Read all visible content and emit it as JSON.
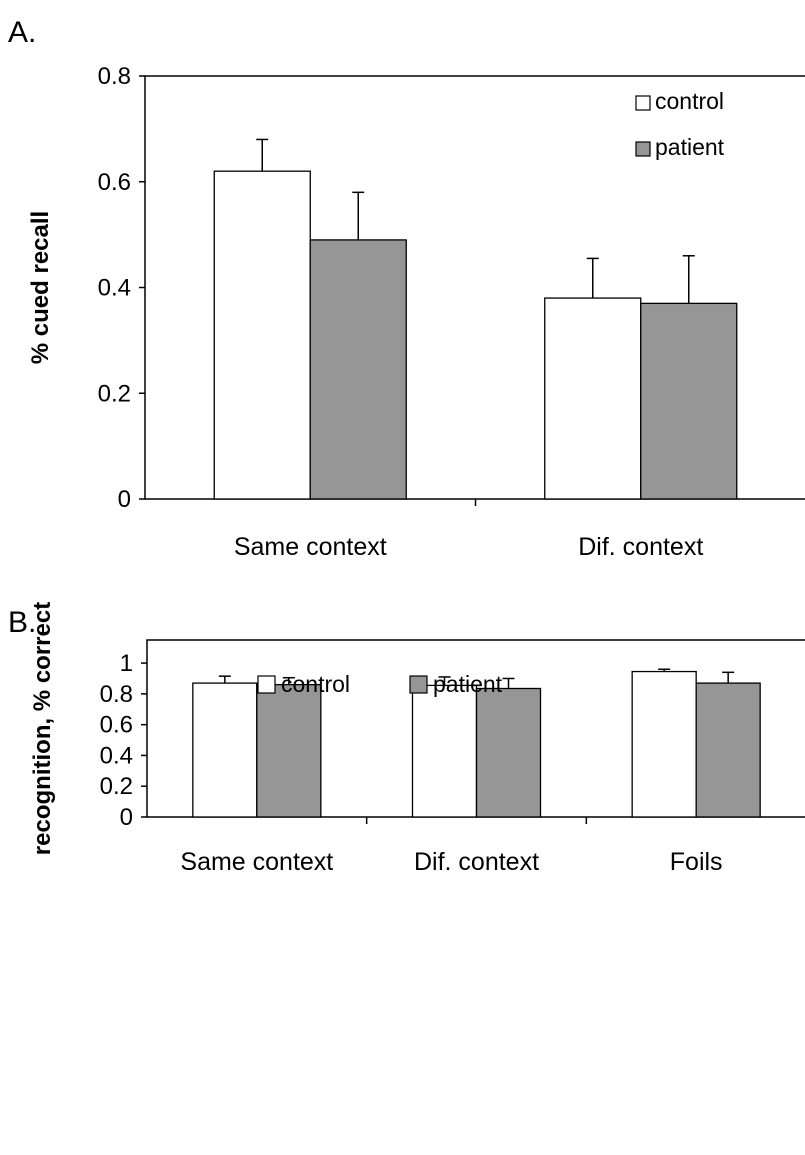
{
  "chart_data": [
    {
      "panel_label": "A.",
      "type": "bar",
      "ylabel": "% cued recall",
      "ylim": [
        0,
        0.8
      ],
      "yticks": [
        0,
        0.2,
        0.4,
        0.6,
        0.8
      ],
      "ytick_labels": [
        "0",
        "0.2",
        "0.4",
        "0.6",
        "0.8"
      ],
      "categories": [
        "Same context",
        "Dif. context"
      ],
      "series": [
        {
          "name": "control",
          "color": "#ffffff",
          "values": [
            0.62,
            0.38
          ],
          "errors": [
            0.06,
            0.075
          ]
        },
        {
          "name": "patient",
          "color": "#969696",
          "values": [
            0.49,
            0.37
          ],
          "errors": [
            0.09,
            0.09
          ]
        }
      ],
      "legend": "top-right",
      "grid": false
    },
    {
      "panel_label": "B.",
      "type": "bar",
      "ylabel": "recognition, % correct",
      "ylim": [
        0,
        1.15
      ],
      "yticks": [
        0,
        0.2,
        0.4,
        0.6,
        0.8,
        1.0
      ],
      "ytick_labels": [
        "0",
        "0.2",
        "0.4",
        "0.6",
        "0.8",
        "1"
      ],
      "categories": [
        "Same context",
        "Dif. context",
        "Foils"
      ],
      "series": [
        {
          "name": "control",
          "color": "#ffffff",
          "values": [
            0.87,
            0.855,
            0.945
          ],
          "errors": [
            0.045,
            0.055,
            0.015
          ]
        },
        {
          "name": "patient",
          "color": "#969696",
          "values": [
            0.86,
            0.835,
            0.87
          ],
          "errors": [
            0.045,
            0.065,
            0.07
          ]
        }
      ],
      "legend": "top-center",
      "grid": false
    }
  ]
}
